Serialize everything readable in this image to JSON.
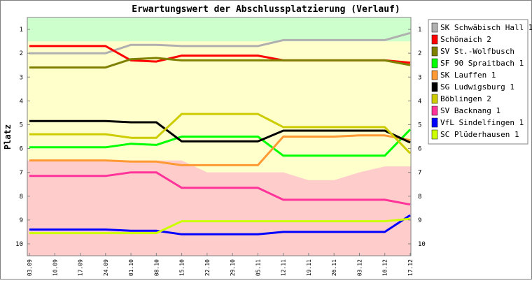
{
  "chart_data": {
    "type": "line",
    "title": "Erwartungswert der Abschlussplatzierung (Verlauf)",
    "xlabel": "",
    "ylabel": "Platz",
    "ylim": [
      10.5,
      0.5
    ],
    "y_inverted": true,
    "yticks": [
      1,
      2,
      3,
      4,
      5,
      6,
      7,
      8,
      9,
      10
    ],
    "yticks_right": true,
    "grid": false,
    "legend_position": "right",
    "categories": [
      "03.09",
      "10.09",
      "17.09",
      "24.09",
      "01.10",
      "08.10",
      "15.10",
      "22.10",
      "29.10",
      "05.11",
      "12.11",
      "19.11",
      "26.11",
      "03.12",
      "10.12",
      "17.12"
    ],
    "background_zones": {
      "promotion_color": "#ccffcc",
      "middle_color": "#ffffcc",
      "relegation_color": "#ffcccc",
      "promotion_upper_limit": [
        1.5,
        1.5,
        1.5,
        1.5,
        1.5,
        1.5,
        1.5,
        1.5,
        1.5,
        1.5,
        1.5,
        1.5,
        1.5,
        1.5,
        1.5,
        1.5
      ],
      "relegation_lower_limit": [
        6.5,
        6.5,
        6.5,
        6.5,
        6.5,
        6.5,
        6.5,
        7.0,
        7.0,
        7.0,
        7.0,
        7.33,
        7.33,
        7.0,
        6.75,
        6.75
      ]
    },
    "series": [
      {
        "name": "SK Schwäbisch Hall 1",
        "color": "#b0b0b0",
        "values": [
          2.0,
          2.0,
          2.0,
          2.0,
          1.65,
          1.65,
          1.7,
          1.7,
          1.7,
          1.7,
          1.45,
          1.45,
          1.45,
          1.45,
          1.45,
          1.15
        ]
      },
      {
        "name": "Schönaich 2",
        "color": "#ff0000",
        "values": [
          1.7,
          1.7,
          1.7,
          1.7,
          2.3,
          2.35,
          2.1,
          2.1,
          2.1,
          2.1,
          2.3,
          2.3,
          2.3,
          2.3,
          2.3,
          2.4
        ]
      },
      {
        "name": "SV St.-Wolfbusch",
        "color": "#808000",
        "values": [
          2.6,
          2.6,
          2.6,
          2.6,
          2.25,
          2.2,
          2.3,
          2.3,
          2.3,
          2.3,
          2.3,
          2.3,
          2.3,
          2.3,
          2.3,
          2.5
        ]
      },
      {
        "name": "SF 90 Spraitbach 1",
        "color": "#00ff00",
        "values": [
          5.95,
          5.95,
          5.95,
          5.95,
          5.8,
          5.85,
          5.5,
          5.5,
          5.5,
          5.5,
          6.3,
          6.3,
          6.3,
          6.3,
          6.3,
          5.2
        ]
      },
      {
        "name": "SK Lauffen 1",
        "color": "#ff9933",
        "values": [
          6.5,
          6.5,
          6.5,
          6.5,
          6.55,
          6.55,
          6.7,
          6.7,
          6.7,
          6.7,
          5.5,
          5.5,
          5.5,
          5.45,
          5.45,
          5.65
        ]
      },
      {
        "name": "SG Ludwigsburg 1",
        "color": "#000000",
        "values": [
          4.85,
          4.85,
          4.85,
          4.85,
          4.9,
          4.9,
          5.7,
          5.7,
          5.7,
          5.7,
          5.25,
          5.25,
          5.25,
          5.25,
          5.25,
          5.75
        ]
      },
      {
        "name": "Böblingen 2",
        "color": "#cccc00",
        "values": [
          5.4,
          5.4,
          5.4,
          5.4,
          5.55,
          5.55,
          4.55,
          4.55,
          4.55,
          4.55,
          5.1,
          5.1,
          5.1,
          5.1,
          5.1,
          6.2
        ]
      },
      {
        "name": "SV Backnang 1",
        "color": "#ff3399",
        "values": [
          7.15,
          7.15,
          7.15,
          7.15,
          7.0,
          7.0,
          7.65,
          7.65,
          7.65,
          7.65,
          8.15,
          8.15,
          8.15,
          8.15,
          8.15,
          8.35
        ]
      },
      {
        "name": "VfL Sindelfingen 1",
        "color": "#0000ff",
        "values": [
          9.4,
          9.4,
          9.4,
          9.4,
          9.45,
          9.45,
          9.6,
          9.6,
          9.6,
          9.6,
          9.5,
          9.5,
          9.5,
          9.5,
          9.5,
          8.8
        ]
      },
      {
        "name": "SC Plüderhausen 1",
        "color": "#ccff00",
        "values": [
          9.55,
          9.55,
          9.55,
          9.55,
          9.55,
          9.55,
          9.05,
          9.05,
          9.05,
          9.05,
          9.05,
          9.05,
          9.05,
          9.05,
          9.05,
          8.95
        ]
      }
    ]
  }
}
